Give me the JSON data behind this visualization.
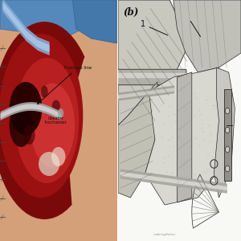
{
  "background_color": "#ffffff",
  "left_panel": {
    "label_fracture_line": "Fracture line",
    "label_greater_trochanter": "Greater\ntrochanter",
    "skin_light": "#d4a07a",
    "skin_mid": "#c8906a",
    "blue_drape": "#5588bb",
    "blue_drape2": "#4477aa",
    "red_tissue_dark": "#7a0a0a",
    "red_tissue_mid": "#9b1010",
    "red_tissue_light": "#b82020",
    "red_bright": "#cc3030",
    "dark_zone": "#2a0000",
    "retractor_gray": "#a0a0a0",
    "retractor_light": "#d0d0d0",
    "bone_white": "#ddd8c8"
  },
  "right_panel": {
    "label_b": "(b)",
    "label_1": "1",
    "bg": "#f8f8f5",
    "muscle_dark": "#909088",
    "muscle_mid": "#b8b8b0",
    "muscle_light": "#d8d8d0",
    "muscle_lighter": "#e8e8e2",
    "bone_gray": "#c8c8c0",
    "hardware_gray": "#888880",
    "line_dark": "#2a2a2a",
    "line_mid": "#555550",
    "line_light": "#888888",
    "signature": "makingfisher"
  }
}
